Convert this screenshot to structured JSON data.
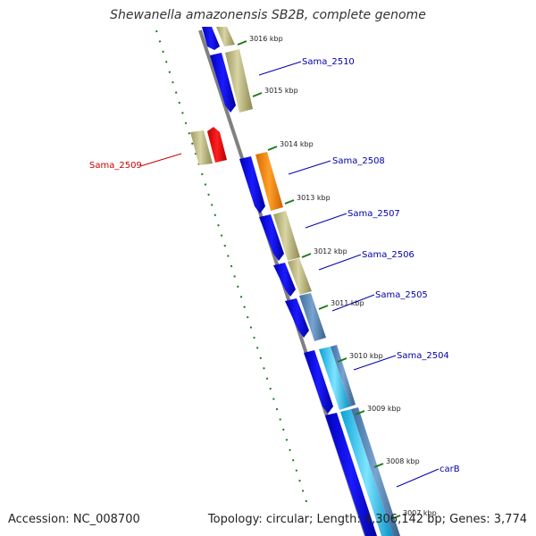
{
  "title": "Shewanella amazonensis SB2B, complete genome",
  "footer": {
    "accession": "Accession: NC_008700",
    "summary": "Topology: circular; Length: 4,306,142 bp; Genes: 3,774"
  },
  "colors": {
    "backbone": "#808080",
    "tick": "#1f7a1f",
    "label_default": "#0000aa",
    "label_highlight": "#cc0000"
  },
  "ticks": [
    "3016 kbp",
    "3015 kbp",
    "3014 kbp",
    "3013 kbp",
    "3012 kbp",
    "3011 kbp",
    "3010 kbp",
    "3009 kbp",
    "3008 kbp",
    "3007 kbp"
  ],
  "gene_labels": [
    {
      "name": "Sama_2510",
      "color": "#0000aa"
    },
    {
      "name": "Sama_2509",
      "color": "#cc0000"
    },
    {
      "name": "Sama_2508",
      "color": "#0000aa"
    },
    {
      "name": "Sama_2507",
      "color": "#0000aa"
    },
    {
      "name": "Sama_2506",
      "color": "#0000aa"
    },
    {
      "name": "Sama_2505",
      "color": "#0000aa"
    },
    {
      "name": "Sama_2504",
      "color": "#0000aa"
    },
    {
      "name": "carB",
      "color": "#0000aa"
    }
  ]
}
